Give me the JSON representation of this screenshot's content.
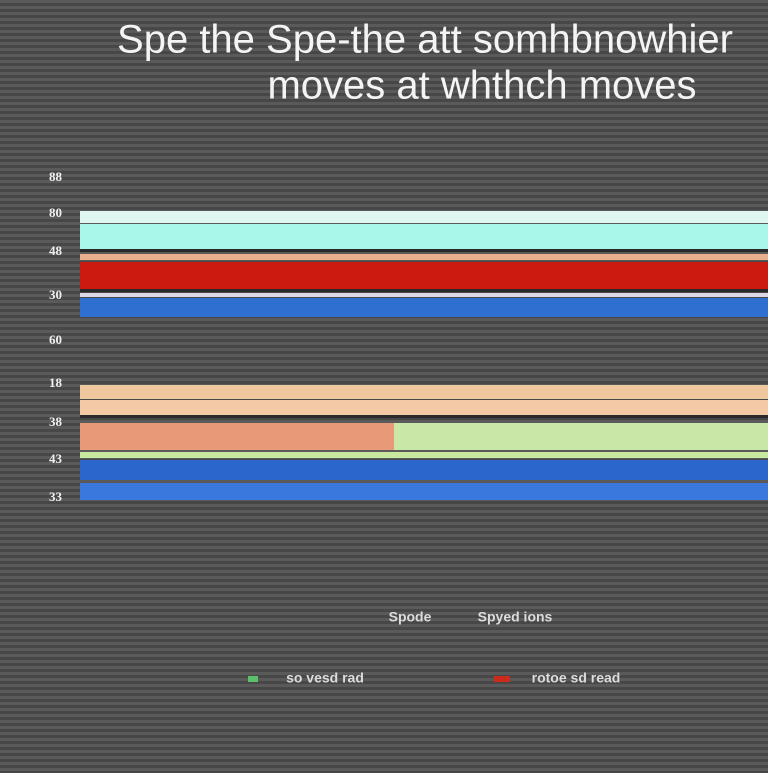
{
  "title": {
    "line1": "Spe the Spe-the att somhbnowhier",
    "line2": "moves  at whthch moves"
  },
  "axis_labels": [
    "88",
    "80",
    "48",
    "30",
    "60",
    "18",
    "38",
    "43",
    "33"
  ],
  "legend": {
    "row1": [
      "Spode",
      "Spyed ions"
    ],
    "row2": [
      "so vesd rad",
      "rotoe sd read"
    ]
  }
}
